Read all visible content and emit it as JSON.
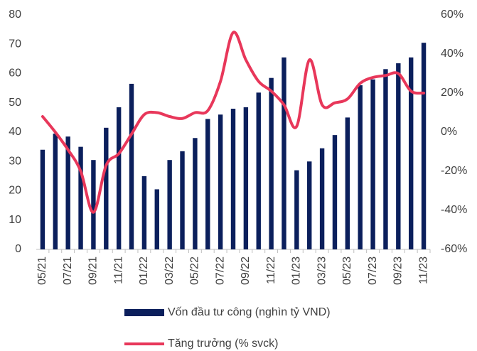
{
  "chart_data": {
    "type": "bar_line",
    "categories": [
      "05/21",
      null,
      "07/21",
      null,
      "09/21",
      null,
      "11/21",
      null,
      "01/22",
      null,
      "03/22",
      null,
      "05/22",
      null,
      "07/22",
      null,
      "09/22",
      null,
      "11/22",
      null,
      "01/23",
      null,
      "03/23",
      null,
      "05/23",
      null,
      "07/23",
      null,
      "09/23",
      null,
      "11/23"
    ],
    "series": [
      {
        "name": "Vốn đầu tư công (nghìn tỷ VND)",
        "type": "bar",
        "color": "#0b1f5c",
        "values": [
          34,
          39.5,
          38.5,
          35,
          30.5,
          41.5,
          48.5,
          56.5,
          25,
          20.5,
          30.5,
          33.5,
          38,
          44.5,
          46,
          48,
          48.5,
          53.5,
          58.5,
          65.5,
          27,
          30,
          34.5,
          39,
          45,
          56,
          58,
          61.5,
          63.5,
          65.5,
          70.5
        ]
      },
      {
        "name": "Tăng trưởng (% svck)",
        "type": "line",
        "axis": "y2",
        "color": "#e8375a",
        "values": [
          8,
          0,
          -9,
          -20,
          -41,
          -17,
          -11,
          -1,
          9,
          10,
          8,
          7,
          10,
          11,
          26,
          51,
          37,
          26,
          21,
          14,
          3,
          37,
          14,
          15,
          17,
          25,
          28,
          29,
          30,
          21,
          20
        ]
      }
    ],
    "ylim": [
      0,
      80
    ],
    "yticks": [
      0,
      10,
      20,
      30,
      40,
      50,
      60,
      70,
      80
    ],
    "y2lim": [
      -60,
      60
    ],
    "y2ticks": [
      {
        "value": -60,
        "label": "-60%"
      },
      {
        "value": -40,
        "label": "-40%"
      },
      {
        "value": -20,
        "label": "-20%"
      },
      {
        "value": 0,
        "label": "0%"
      },
      {
        "value": 20,
        "label": "20%"
      },
      {
        "value": 40,
        "label": "40%"
      },
      {
        "value": 60,
        "label": "60%"
      }
    ],
    "grid": false,
    "legend": "bottom"
  }
}
